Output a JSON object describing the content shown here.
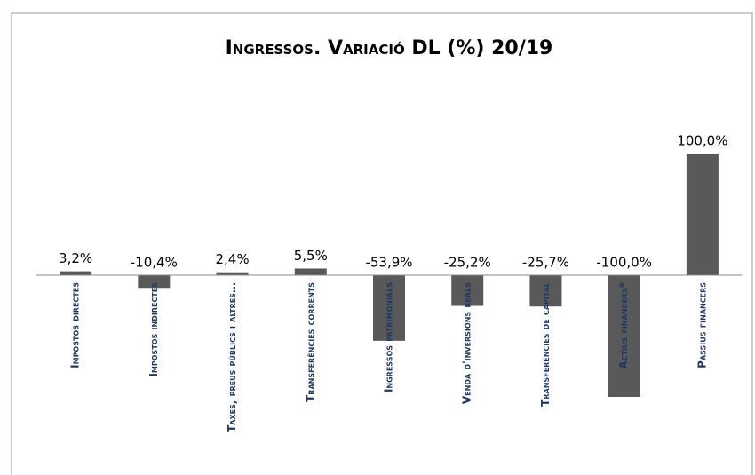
{
  "chart_data": {
    "type": "bar",
    "title": "Ingressos. Variació DL (%) 20/19",
    "categories": [
      "Impostos directes",
      "Impostos indirectes",
      "Taxes, preus públics i altres…",
      "Transferències corrents",
      "Ingressos patrimonials",
      "Venda d'inversions reals",
      "Transferències de capital",
      "Actius financers*",
      "Passius financers"
    ],
    "values": [
      3.2,
      -10.4,
      2.4,
      5.5,
      -53.9,
      -25.2,
      -25.7,
      -100.0,
      100.0
    ],
    "value_labels": [
      "3,2%",
      "-10,4%",
      "2,4%",
      "5,5%",
      "-53,9%",
      "-25,2%",
      "-25,7%",
      "-100,0%",
      "100,0%"
    ],
    "color": "#595959"
  }
}
